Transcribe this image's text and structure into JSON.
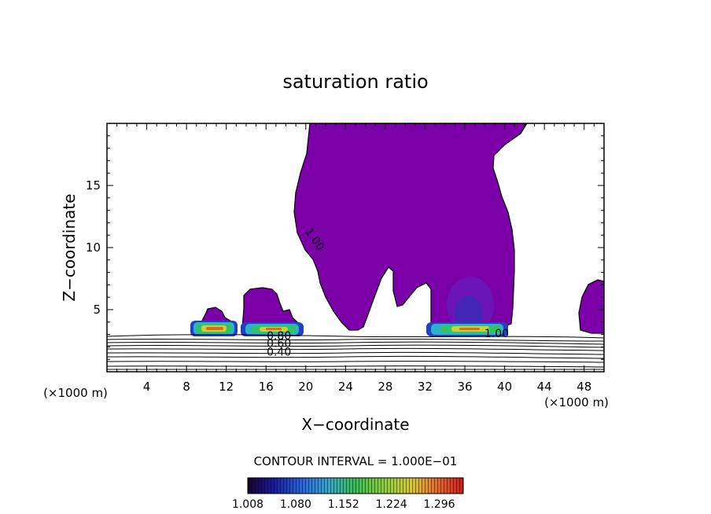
{
  "chart_data": {
    "type": "heatmap",
    "title": "saturation ratio",
    "xlabel": "X−coordinate",
    "ylabel": "Z−coordinate",
    "x_unit_left": "(×1000 m)",
    "x_unit_right": "(×1000 m)",
    "xlim": [
      0,
      50
    ],
    "ylim": [
      0,
      20
    ],
    "x_ticks": [
      4,
      8,
      12,
      16,
      20,
      24,
      28,
      32,
      36,
      40,
      44,
      48
    ],
    "y_ticks": [
      5,
      10,
      15
    ],
    "contour_interval_text": "CONTOUR INTERVAL = 1.000E−01",
    "contour_labels": [
      {
        "text": "1.00",
        "x": 20.6,
        "y": 10.5
      },
      {
        "text": "1.00",
        "x": 39.2,
        "y": 2.8
      },
      {
        "text": "0.80",
        "x": 17.3,
        "y": 2.6
      },
      {
        "text": "0.60",
        "x": 17.3,
        "y": 2.0
      },
      {
        "text": "0.40",
        "x": 17.3,
        "y": 1.3
      }
    ],
    "supersaturated_region_color": "#7b00a8",
    "colorbar": {
      "min": 1.008,
      "max": 1.332,
      "ticks": [
        "1.008",
        "1.080",
        "1.152",
        "1.224",
        "1.296"
      ]
    }
  }
}
